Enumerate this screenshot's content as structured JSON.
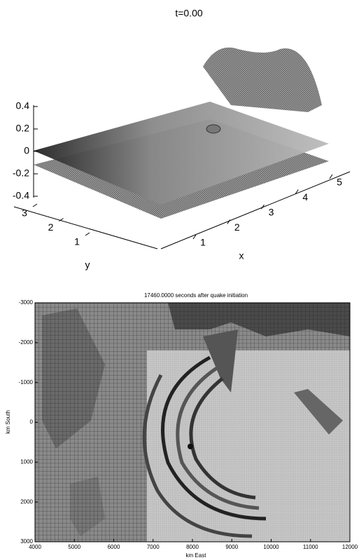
{
  "chart_data": [
    {
      "type": "surface3d",
      "title": "t=0.00",
      "x_label": "x",
      "y_label": "y",
      "xticks": [
        1,
        2,
        3,
        4,
        5
      ],
      "yticks": [
        1,
        2,
        3
      ],
      "zticks": [
        0.4,
        0.2,
        0,
        -0.2,
        -0.4
      ]
    },
    {
      "type": "heatmap",
      "title": "17460.0000 seconds after quake initiation",
      "x_label": "km East",
      "y_label": "km South",
      "xlim": [
        4000,
        12000
      ],
      "ylim": [
        -3000,
        3000
      ],
      "xticks": [
        4000,
        5000,
        6000,
        7000,
        8000,
        9000,
        10000,
        11000,
        12000
      ],
      "yticks": [
        -3000,
        -2000,
        -1000,
        0,
        1000,
        2000,
        3000
      ]
    }
  ]
}
